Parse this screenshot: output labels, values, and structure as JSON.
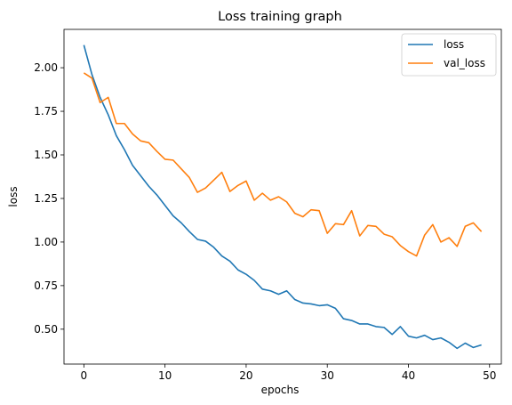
{
  "chart_data": {
    "type": "line",
    "title": "Loss training graph",
    "xlabel": "epochs",
    "ylabel": "loss",
    "xlim": [
      -2.45,
      51.45
    ],
    "ylim": [
      0.3,
      2.22
    ],
    "xticks": [
      0,
      10,
      20,
      30,
      40,
      50
    ],
    "xtick_labels": [
      "0",
      "10",
      "20",
      "30",
      "40",
      "50"
    ],
    "yticks": [
      0.5,
      0.75,
      1.0,
      1.25,
      1.5,
      1.75,
      2.0
    ],
    "ytick_labels": [
      "0.50",
      "0.75",
      "1.00",
      "1.25",
      "1.50",
      "1.75",
      "2.00"
    ],
    "grid": false,
    "legend_position": "top-right",
    "x": [
      0,
      1,
      2,
      3,
      4,
      5,
      6,
      7,
      8,
      9,
      10,
      11,
      12,
      13,
      14,
      15,
      16,
      17,
      18,
      19,
      20,
      21,
      22,
      23,
      24,
      25,
      26,
      27,
      28,
      29,
      30,
      31,
      32,
      33,
      34,
      35,
      36,
      37,
      38,
      39,
      40,
      41,
      42,
      43,
      44,
      45,
      46,
      47,
      48,
      49
    ],
    "series": [
      {
        "name": "loss",
        "color": "#1f77b4",
        "values": [
          2.13,
          1.96,
          1.83,
          1.73,
          1.61,
          1.53,
          1.44,
          1.38,
          1.32,
          1.27,
          1.21,
          1.15,
          1.11,
          1.06,
          1.015,
          1.005,
          0.97,
          0.92,
          0.89,
          0.84,
          0.815,
          0.78,
          0.73,
          0.72,
          0.7,
          0.72,
          0.67,
          0.65,
          0.645,
          0.635,
          0.64,
          0.62,
          0.56,
          0.55,
          0.53,
          0.53,
          0.515,
          0.51,
          0.47,
          0.515,
          0.46,
          0.45,
          0.465,
          0.44,
          0.45,
          0.425,
          0.39,
          0.42,
          0.395,
          0.41
        ]
      },
      {
        "name": "val_loss",
        "color": "#ff7f0e",
        "values": [
          1.97,
          1.94,
          1.8,
          1.83,
          1.68,
          1.68,
          1.62,
          1.58,
          1.57,
          1.52,
          1.475,
          1.47,
          1.42,
          1.37,
          1.285,
          1.31,
          1.355,
          1.4,
          1.29,
          1.325,
          1.35,
          1.24,
          1.28,
          1.24,
          1.26,
          1.23,
          1.165,
          1.145,
          1.185,
          1.18,
          1.05,
          1.105,
          1.1,
          1.18,
          1.035,
          1.095,
          1.09,
          1.045,
          1.03,
          0.98,
          0.945,
          0.92,
          1.04,
          1.1,
          1.0,
          1.025,
          0.975,
          1.09,
          1.11,
          1.06
        ]
      }
    ]
  }
}
